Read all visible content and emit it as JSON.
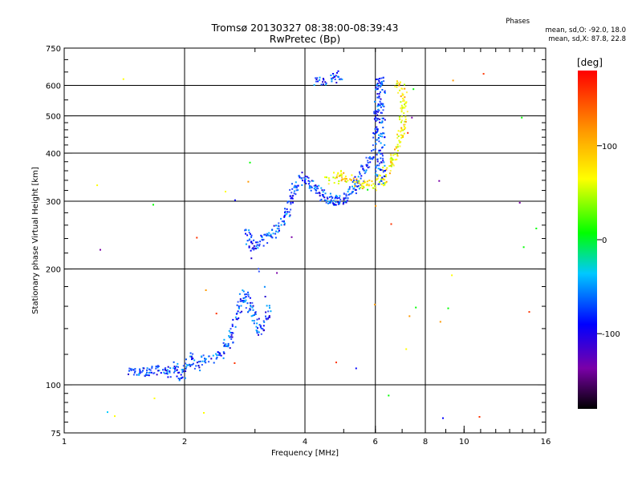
{
  "header": {
    "title_line1": "Tromsø 20130327 08:38:00-08:39:43",
    "title_line2": "RwPretec (Bp)"
  },
  "phase_info": {
    "title": "Phases",
    "line_o": "mean, sd,O: -92.0, 18.0",
    "line_x": "mean, sd,X:  87.8, 22.8"
  },
  "colorbar": {
    "unit": "[deg]",
    "ticks": [
      {
        "value": 100,
        "label": "100"
      },
      {
        "value": 0,
        "label": "0"
      },
      {
        "value": -100,
        "label": "-100"
      }
    ],
    "range": [
      -180,
      180
    ]
  },
  "chart_data": {
    "type": "scatter",
    "xlabel": "Frequency [MHz]",
    "ylabel": "Stationary phase Virtual Height [km]",
    "x_scale": "log",
    "y_scale": "log",
    "xlim": [
      1,
      16
    ],
    "ylim": [
      75,
      750
    ],
    "x_ticks": [
      {
        "value": 1,
        "label": "1"
      },
      {
        "value": 2,
        "label": "2"
      },
      {
        "value": 4,
        "label": "4"
      },
      {
        "value": 6,
        "label": "6"
      },
      {
        "value": 8,
        "label": "8"
      },
      {
        "value": 10,
        "label": "10"
      },
      {
        "value": 16,
        "label": "16"
      }
    ],
    "x_grid": [
      2,
      4,
      6,
      8
    ],
    "y_ticks": [
      {
        "value": 75,
        "label": "75"
      },
      {
        "value": 100,
        "label": "100"
      },
      {
        "value": 200,
        "label": "200"
      },
      {
        "value": 300,
        "label": "300"
      },
      {
        "value": 400,
        "label": "400"
      },
      {
        "value": 500,
        "label": "500"
      },
      {
        "value": 600,
        "label": "600"
      },
      {
        "value": 750,
        "label": "750"
      }
    ],
    "y_grid": [
      100,
      200,
      300,
      400,
      500,
      600
    ],
    "grid": true,
    "o_trace": [
      [
        1.45,
        107
      ],
      [
        1.5,
        109
      ],
      [
        1.55,
        106
      ],
      [
        1.6,
        110
      ],
      [
        1.65,
        108
      ],
      [
        1.7,
        111
      ],
      [
        1.75,
        108
      ],
      [
        1.8,
        110
      ],
      [
        1.85,
        106
      ],
      [
        1.9,
        112
      ],
      [
        1.95,
        105
      ],
      [
        2.0,
        109
      ],
      [
        2.05,
        114
      ],
      [
        2.1,
        118
      ],
      [
        2.15,
        111
      ],
      [
        2.2,
        115
      ],
      [
        2.3,
        117
      ],
      [
        2.4,
        118
      ],
      [
        2.5,
        121
      ],
      [
        2.55,
        126
      ],
      [
        2.6,
        132
      ],
      [
        2.65,
        140
      ],
      [
        2.7,
        152
      ],
      [
        2.75,
        160
      ],
      [
        2.8,
        168
      ],
      [
        2.85,
        175
      ],
      [
        2.9,
        162
      ],
      [
        2.95,
        155
      ],
      [
        3.0,
        150
      ],
      [
        3.05,
        142
      ],
      [
        3.1,
        135
      ],
      [
        3.2,
        150
      ],
      [
        3.3,
        155
      ],
      [
        2.85,
        255
      ],
      [
        2.9,
        240
      ],
      [
        2.95,
        232
      ],
      [
        3.0,
        230
      ],
      [
        3.1,
        235
      ],
      [
        3.2,
        240
      ],
      [
        3.3,
        245
      ],
      [
        3.4,
        252
      ],
      [
        3.5,
        262
      ],
      [
        3.6,
        275
      ],
      [
        3.65,
        290
      ],
      [
        3.7,
        305
      ],
      [
        3.75,
        318
      ],
      [
        3.8,
        330
      ],
      [
        3.9,
        340
      ],
      [
        4.0,
        350
      ],
      [
        4.1,
        335
      ],
      [
        4.2,
        325
      ],
      [
        4.3,
        318
      ],
      [
        4.4,
        312
      ],
      [
        4.5,
        308
      ],
      [
        4.6,
        305
      ],
      [
        4.7,
        302
      ],
      [
        4.8,
        300
      ],
      [
        4.9,
        302
      ],
      [
        5.0,
        305
      ],
      [
        5.1,
        310
      ],
      [
        5.2,
        318
      ],
      [
        5.3,
        325
      ],
      [
        5.4,
        335
      ],
      [
        5.5,
        345
      ],
      [
        5.6,
        358
      ],
      [
        5.7,
        370
      ],
      [
        5.8,
        385
      ],
      [
        5.9,
        410
      ],
      [
        6.0,
        450
      ],
      [
        6.05,
        500
      ],
      [
        6.1,
        560
      ],
      [
        6.15,
        620
      ],
      [
        4.2,
        610
      ],
      [
        4.4,
        612
      ],
      [
        4.6,
        620
      ],
      [
        4.8,
        630
      ],
      [
        5.0,
        640
      ]
    ],
    "x_trace": [
      [
        4.5,
        335
      ],
      [
        4.8,
        345
      ],
      [
        5.0,
        348
      ],
      [
        5.3,
        340
      ],
      [
        5.6,
        330
      ],
      [
        5.9,
        328
      ],
      [
        6.2,
        340
      ],
      [
        6.4,
        360
      ],
      [
        6.6,
        380
      ],
      [
        6.8,
        410
      ],
      [
        6.9,
        440
      ],
      [
        7.0,
        470
      ],
      [
        7.05,
        500
      ],
      [
        7.1,
        540
      ],
      [
        7.0,
        580
      ],
      [
        6.8,
        610
      ]
    ]
  }
}
